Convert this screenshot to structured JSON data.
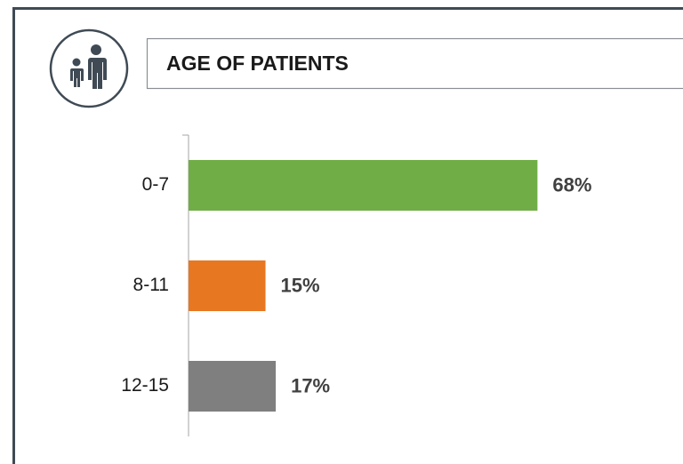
{
  "chart_data": {
    "type": "bar",
    "orientation": "horizontal",
    "title": "AGE OF PATIENTS",
    "categories": [
      "0-7",
      "8-11",
      "12-15"
    ],
    "values": [
      68,
      15,
      17
    ],
    "value_labels": [
      "68%",
      "15%",
      "17%"
    ],
    "colors": [
      "#70ad47",
      "#e87722",
      "#7f7f7f"
    ]
  }
}
